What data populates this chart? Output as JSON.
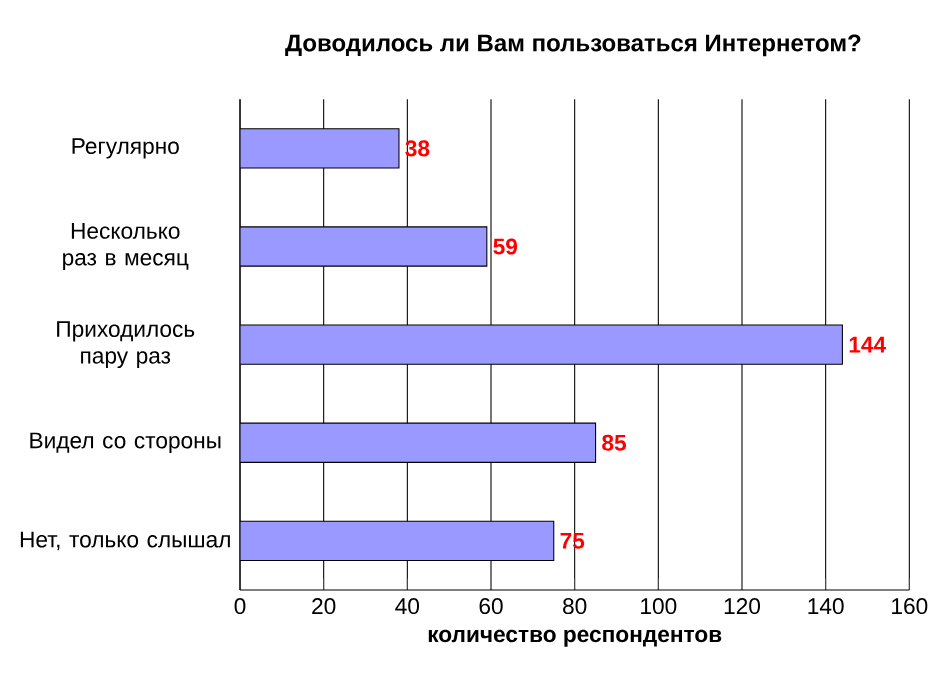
{
  "chart_data": {
    "type": "bar",
    "orientation": "horizontal",
    "title": "Доводилось ли Вам пользоваться Интернетом?",
    "xlabel": "количество респондентов",
    "categories": [
      "Регулярно",
      "Несколько раз в месяц",
      "Приходилось пару раз",
      "Видел со стороны",
      "Нет, только слышал"
    ],
    "values": [
      38,
      59,
      144,
      85,
      75
    ],
    "color": "#9999ff",
    "xlim": [
      0,
      160
    ],
    "xticks": [
      0,
      20,
      40,
      60,
      80,
      100,
      120,
      140,
      160
    ],
    "grid": "x",
    "data_labels": true
  }
}
